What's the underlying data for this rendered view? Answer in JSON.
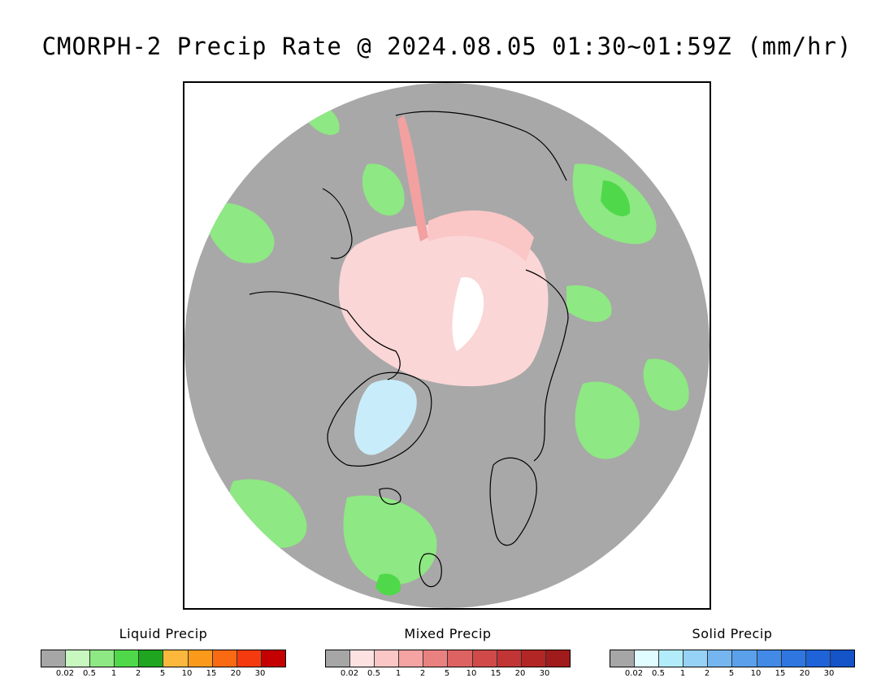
{
  "title": "CMORPH-2 Precip Rate @ 2024.08.05 01:30~01:59Z (mm/hr)",
  "legends": [
    {
      "label": "Liquid Precip",
      "colors": [
        "#a6a6a6",
        "#c8f7c0",
        "#8ee883",
        "#4fd94a",
        "#1fa51f",
        "#fbb83c",
        "#fb9a1a",
        "#fa6a12",
        "#f53a10",
        "#c40000"
      ],
      "ticks": [
        "0.02",
        "0.5",
        "1",
        "2",
        "5",
        "10",
        "15",
        "20",
        "30"
      ]
    },
    {
      "label": "Mixed Precip",
      "colors": [
        "#a6a6a6",
        "#fde2e2",
        "#fbc6c6",
        "#f5a3a3",
        "#ea8181",
        "#dd6363",
        "#d04a4a",
        "#c23535",
        "#b22626",
        "#a01c1c"
      ],
      "ticks": [
        "0.02",
        "0.5",
        "1",
        "2",
        "5",
        "10",
        "15",
        "20",
        "30"
      ]
    },
    {
      "label": "Solid Precip",
      "colors": [
        "#a6a6a6",
        "#e2fdff",
        "#b2ecfa",
        "#96d2f6",
        "#75b6f0",
        "#5aa0ea",
        "#428ae6",
        "#2f76e0",
        "#1f63d8",
        "#1453c8"
      ],
      "ticks": [
        "0.02",
        "0.5",
        "1",
        "2",
        "5",
        "10",
        "15",
        "20",
        "30"
      ]
    }
  ],
  "map": {
    "background": "#a8a8a8",
    "liquid_color": "#8ee883",
    "liquid_dark": "#4fd94a",
    "mixed_color": "#fbc6c6",
    "solid_color": "#c8ecfa",
    "coast_color": "#000000"
  }
}
